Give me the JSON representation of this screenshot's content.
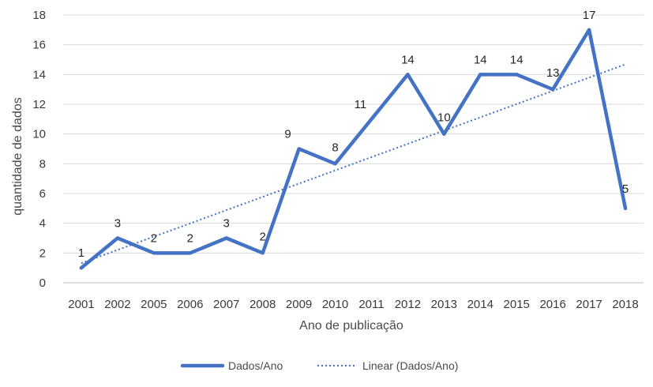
{
  "chart_data": {
    "type": "line",
    "title": "",
    "xlabel": "Ano de publicação",
    "ylabel": "quantidade de dados",
    "categories": [
      "2001",
      "2002",
      "2005",
      "2006",
      "2007",
      "2008",
      "2009",
      "2010",
      "2011",
      "2012",
      "2013",
      "2014",
      "2015",
      "2016",
      "2017",
      "2018"
    ],
    "series": [
      {
        "name": "Dados/Ano",
        "values": [
          1,
          3,
          2,
          2,
          3,
          2,
          9,
          8,
          11,
          14,
          10,
          14,
          14,
          13,
          17,
          5
        ],
        "color": "#4472C4",
        "style": "solid"
      },
      {
        "name": "Linear (Dados/Ano)",
        "trendline_of": "Dados/Ano",
        "color": "#4472C4",
        "style": "dotted"
      }
    ],
    "ylim": [
      0,
      18
    ],
    "yticks": [
      0,
      2,
      4,
      6,
      8,
      10,
      12,
      14,
      16,
      18
    ],
    "data_labels": true,
    "grid": "horizontal",
    "legend_position": "bottom"
  }
}
